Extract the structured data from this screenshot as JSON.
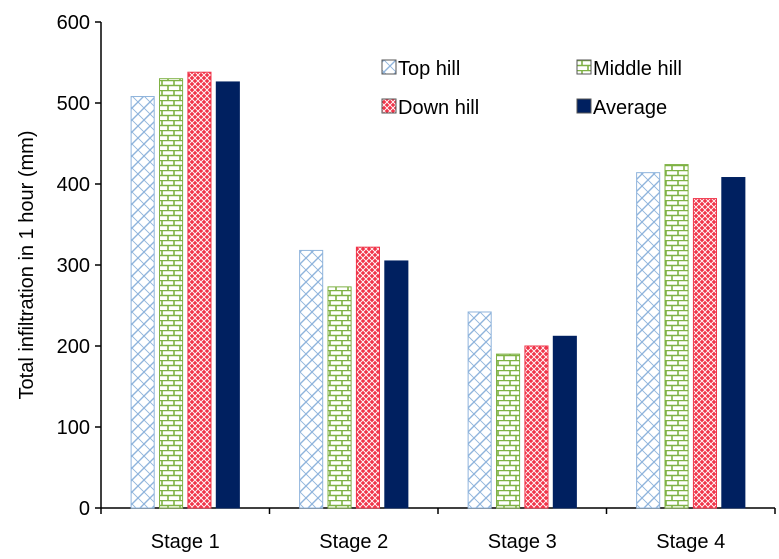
{
  "chart_data": {
    "type": "bar",
    "title": "",
    "xlabel": "",
    "ylabel": "Total infiltration in 1 hour (mm)",
    "ylim": [
      0,
      600
    ],
    "yticks": [
      "0",
      "100",
      "200",
      "300",
      "400",
      "500",
      "600"
    ],
    "categories": [
      "Stage 1",
      "Stage 2",
      "Stage 3",
      "Stage 4"
    ],
    "series": [
      {
        "name": "Top hill",
        "values": [
          508,
          318,
          242,
          414
        ],
        "pattern": "diagonal-cross",
        "color": "#8fb4dc"
      },
      {
        "name": "Middle hill",
        "values": [
          530,
          273,
          190,
          424
        ],
        "pattern": "brick",
        "color": "#7fb245"
      },
      {
        "name": "Down hill",
        "values": [
          538,
          322,
          200,
          382
        ],
        "pattern": "diamond-grid",
        "color": "#f0354a"
      },
      {
        "name": "Average",
        "values": [
          526,
          305,
          212,
          408
        ],
        "pattern": "solid",
        "color": "#002060"
      }
    ],
    "grid": false,
    "legend": "top-right"
  }
}
